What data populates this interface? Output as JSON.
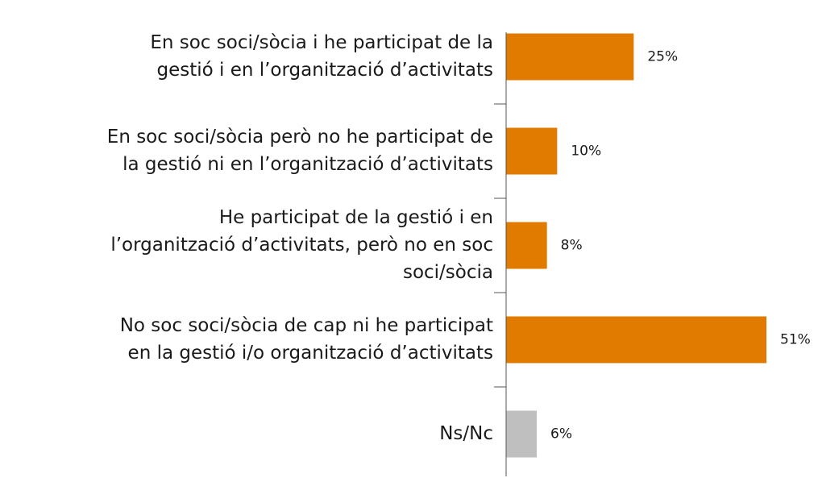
{
  "chart_data": {
    "type": "bar",
    "orientation": "horizontal",
    "categories": [
      [
        "En soc soci/sòcia i he participat de la",
        "gestió i en l’organització d’activitats"
      ],
      [
        "En soc soci/sòcia però no he participat de",
        "la gestió ni en l’organització d’activitats"
      ],
      [
        "He participat de la gestió i en",
        "l’organització d’activitats, però no en soc",
        "soci/sòcia"
      ],
      [
        "No soc soci/sòcia de cap ni he participat",
        "en la gestió i/o organització d’activitats"
      ],
      [
        "Ns/Nc"
      ]
    ],
    "values": [
      25,
      10,
      8,
      51,
      6
    ],
    "value_labels": [
      "25%",
      "10%",
      "8%",
      "51%",
      "6%"
    ],
    "colors": [
      "#e07b00",
      "#e07b00",
      "#e07b00",
      "#e07b00",
      "#bfbfbf"
    ],
    "xlim": [
      0,
      51
    ]
  }
}
